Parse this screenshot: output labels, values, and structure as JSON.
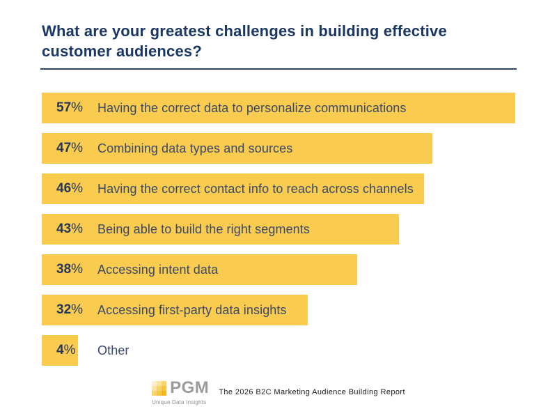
{
  "header": {
    "title": "What are your greatest challenges in building effective customer audiences?"
  },
  "chart_data": {
    "type": "bar",
    "orientation": "horizontal",
    "title": "What are your greatest challenges in building effective customer audiences?",
    "categories": [
      "Having the correct data to personalize communications",
      "Combining data types and sources",
      "Having the correct contact info to reach across channels",
      "Being able to build the right segments",
      "Accessing intent data",
      "Accessing first-party data insights",
      "Other"
    ],
    "values": [
      57,
      47,
      46,
      43,
      38,
      32,
      4
    ],
    "value_suffix": "%",
    "xlim": [
      0,
      57
    ],
    "grid": false,
    "legend": "none",
    "bar_color": "#F9CB4E"
  },
  "footer": {
    "logo_name": "PGM",
    "logo_tagline": "Unique Data Insights",
    "report_title": "The 2026 B2C Marketing Audience Building Report"
  },
  "colors": {
    "background": "#FFFFFF",
    "bar": "#F9CB4E",
    "title_text": "#1B3763",
    "value_text": "#26375B",
    "label_text": "#39486B",
    "rule": "#2E3F60",
    "logo_text": "#9B9B9B",
    "logo_tagline_text": "#8E8E8E",
    "report_text": "#1C1C1C",
    "logo_mosaic": [
      "#FBF0CE",
      "#FAE49E",
      "#F8D469",
      "#FAE5A4",
      "#F7D36B",
      "#F5C53E",
      "#F8D36C",
      "#F5C641",
      "#F2B91D"
    ]
  }
}
